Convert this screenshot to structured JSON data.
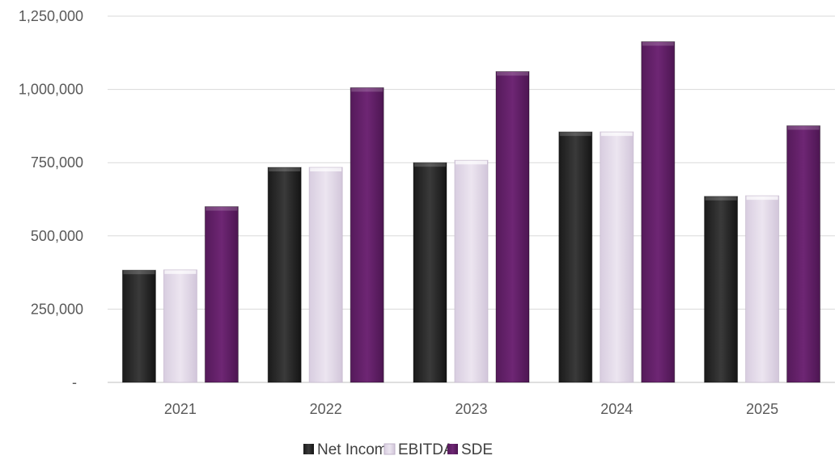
{
  "chart_data": {
    "type": "bar",
    "categories": [
      "2021",
      "2022",
      "2023",
      "2024",
      "2025"
    ],
    "series": [
      {
        "name": "Net Income",
        "values": [
          383000,
          734000,
          750000,
          855000,
          635000
        ]
      },
      {
        "name": "EBITDA",
        "values": [
          384000,
          734000,
          758000,
          855000,
          637000
        ]
      },
      {
        "name": "SDE",
        "values": [
          600000,
          1006000,
          1061000,
          1163000,
          876000
        ]
      }
    ],
    "y_ticks": [
      {
        "value": 0,
        "label": "-"
      },
      {
        "value": 250000,
        "label": "250,000"
      },
      {
        "value": 500000,
        "label": "500,000"
      },
      {
        "value": 750000,
        "label": "750,000"
      },
      {
        "value": 1000000,
        "label": "1,000,000"
      },
      {
        "value": 1250000,
        "label": "1,250,000"
      }
    ],
    "ylim": [
      0,
      1250000
    ],
    "grid": true,
    "legend_position": "bottom",
    "title": "",
    "xlabel": "",
    "ylabel": ""
  },
  "colors": {
    "Net Income": "#2b2b2b",
    "EBITDA": "#e5dcea",
    "SDE": "#68226d",
    "gridline": "#d9d9d9",
    "axis": "#bfbfbf"
  }
}
